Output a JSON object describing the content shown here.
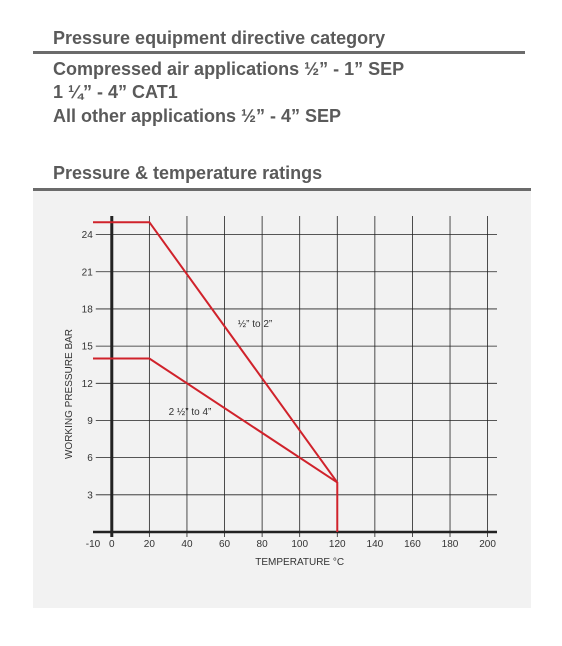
{
  "sections": [
    {
      "title": "Pressure equipment directive category",
      "lines": [
        "Compressed air applications ½” - 1” SEP",
        "1 ¼” - 4” CAT1",
        "All other applications ½” - 4” SEP"
      ]
    },
    {
      "title": "Pressure & temperature ratings"
    }
  ],
  "chart_data": {
    "type": "line",
    "x_label": "TEMPERATURE °C",
    "y_label": "WORKING PRESSURE BAR",
    "xlim": [
      -10,
      205
    ],
    "ylim": [
      0,
      25.5
    ],
    "xticks": [
      -10,
      0,
      20,
      40,
      60,
      80,
      100,
      120,
      140,
      160,
      180,
      200
    ],
    "yticks": [
      3,
      6,
      9,
      12,
      15,
      18,
      21,
      24
    ],
    "grid": true,
    "series": [
      {
        "name": "½” to 2”",
        "color": "#d0222b",
        "x": [
          -10,
          20,
          120,
          120
        ],
        "values": [
          25,
          25,
          4,
          0
        ]
      },
      {
        "name": "2 ½” to 4”",
        "color": "#d0222b",
        "x": [
          -10,
          20,
          120
        ],
        "values": [
          14,
          14,
          4
        ]
      }
    ]
  }
}
